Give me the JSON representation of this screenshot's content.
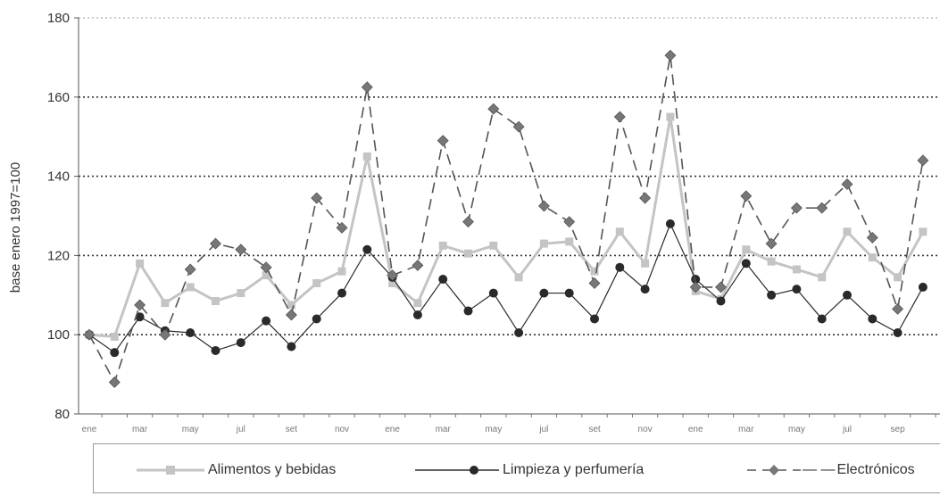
{
  "chart_data": {
    "type": "line",
    "ylabel": "base enero 1997=100",
    "ylim": [
      80,
      180
    ],
    "yticks": [
      80,
      100,
      120,
      140,
      160,
      180
    ],
    "grid": "horizontal dotted",
    "legend_position": "bottom",
    "x_tick_labels": [
      "ene",
      "mar",
      "may",
      "jul",
      "set",
      "nov",
      "ene",
      "mar",
      "may",
      "jul",
      "set",
      "nov",
      "ene",
      "mar",
      "may",
      "jul",
      "sep"
    ],
    "series": [
      {
        "name": "Alimentos y bebidas",
        "color": "#c4c4c4",
        "style": "solid",
        "marker": "square",
        "values": [
          100,
          99.5,
          118,
          108,
          112,
          108.5,
          110.5,
          115,
          107.5,
          113,
          116,
          145,
          113,
          108,
          122.5,
          120.5,
          122.5,
          114.5,
          123,
          123.5,
          116,
          126,
          118,
          155,
          111,
          109,
          121.5,
          118.5,
          116.5,
          114.5,
          126,
          119.5,
          114.5,
          126
        ]
      },
      {
        "name": "Limpieza y perfumería",
        "color": "#2a2a2a",
        "style": "solid",
        "marker": "circle",
        "values": [
          100,
          95.5,
          104.5,
          101,
          100.5,
          96,
          98,
          103.5,
          97,
          104,
          110.5,
          121.5,
          114.5,
          105,
          114,
          106,
          110.5,
          100.5,
          110.5,
          110.5,
          104,
          117,
          111.5,
          128,
          114,
          108.5,
          118,
          110,
          111.5,
          104,
          110,
          104,
          100.5,
          112
        ]
      },
      {
        "name": "Electrónicos",
        "color": "#555555",
        "style": "dashed",
        "marker": "diamond",
        "values": [
          100,
          88,
          107.5,
          100,
          116.5,
          123,
          121.5,
          117,
          105,
          134.5,
          127,
          162.5,
          115,
          117.5,
          149,
          128.5,
          157,
          152.5,
          132.5,
          128.5,
          113,
          155,
          134.5,
          170.5,
          112,
          112,
          135,
          123,
          132,
          132,
          138,
          124.5,
          106.5,
          144
        ]
      }
    ]
  },
  "legend": {
    "items": [
      {
        "label": "Alimentos y bebidas"
      },
      {
        "label": "Limpieza y perfumería"
      },
      {
        "label": "Electrónicos",
        "prefix": "— —"
      }
    ]
  }
}
